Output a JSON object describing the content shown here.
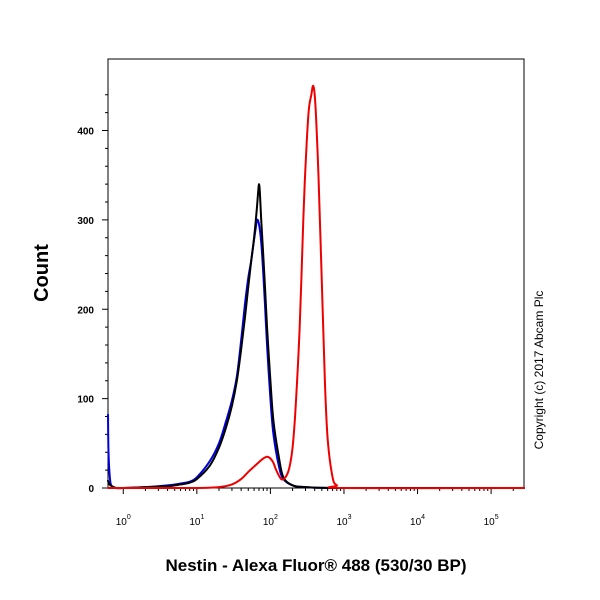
{
  "chart_data": {
    "type": "line",
    "title": "",
    "xlabel": "Nestin - Alexa Fluor® 488 (530/30 BP)",
    "ylabel": "Count",
    "x_scale": "log",
    "xlim": [
      0.62,
      280000
    ],
    "ylim": [
      0,
      480
    ],
    "x_tick_labels": [
      {
        "value": 1,
        "base": "10",
        "exp": "0"
      },
      {
        "value": 10,
        "base": "10",
        "exp": "1"
      },
      {
        "value": 100,
        "base": "10",
        "exp": "2"
      },
      {
        "value": 1000,
        "base": "10",
        "exp": "3"
      },
      {
        "value": 10000,
        "base": "10",
        "exp": "4"
      },
      {
        "value": 100000,
        "base": "10",
        "exp": "5"
      }
    ],
    "y_ticks": [
      0,
      100,
      200,
      300,
      400
    ],
    "grid": false,
    "legend": "none",
    "series": [
      {
        "color": "#0000dd",
        "x": [
          0.62,
          0.63,
          0.66,
          0.7,
          0.8,
          1,
          2,
          4,
          6,
          8,
          10,
          15,
          20,
          25,
          30,
          35,
          40,
          45,
          50,
          55,
          60,
          63,
          66,
          70,
          75,
          80,
          85,
          90,
          100,
          110,
          130,
          150,
          200,
          300,
          1000,
          280000
        ],
        "y": [
          82,
          40,
          10,
          2,
          0,
          0,
          1,
          3,
          5,
          7,
          12,
          30,
          50,
          75,
          98,
          125,
          165,
          205,
          235,
          255,
          278,
          290,
          300,
          295,
          275,
          240,
          200,
          160,
          100,
          60,
          25,
          10,
          3,
          1,
          0,
          0
        ]
      },
      {
        "color": "#000000",
        "x": [
          0.62,
          0.65,
          0.7,
          0.8,
          1,
          2,
          4,
          6,
          8,
          10,
          15,
          20,
          25,
          30,
          35,
          40,
          45,
          50,
          55,
          60,
          65,
          68,
          70,
          72,
          75,
          80,
          85,
          90,
          100,
          110,
          130,
          150,
          200,
          300,
          1000,
          280000
        ],
        "y": [
          8,
          4,
          2,
          0,
          0,
          1,
          2,
          4,
          6,
          10,
          25,
          45,
          68,
          92,
          120,
          155,
          190,
          225,
          255,
          280,
          310,
          330,
          340,
          330,
          300,
          260,
          220,
          180,
          120,
          75,
          35,
          12,
          3,
          1,
          0,
          0
        ]
      },
      {
        "color": "#ee0000",
        "x": [
          0.62,
          5,
          10,
          20,
          30,
          40,
          50,
          60,
          70,
          80,
          90,
          100,
          110,
          120,
          140,
          160,
          180,
          200,
          220,
          250,
          280,
          300,
          330,
          360,
          380,
          400,
          420,
          450,
          500,
          550,
          600,
          700,
          800,
          1000,
          280000
        ],
        "y": [
          0,
          0,
          0,
          1,
          4,
          10,
          18,
          24,
          29,
          33,
          35,
          33,
          28,
          20,
          10,
          12,
          22,
          45,
          90,
          180,
          300,
          360,
          420,
          440,
          450,
          440,
          410,
          350,
          230,
          120,
          55,
          12,
          3,
          0,
          0
        ]
      }
    ]
  },
  "side_text": {
    "copyright": "Copyright (c) 2017 Abcam Plc"
  }
}
